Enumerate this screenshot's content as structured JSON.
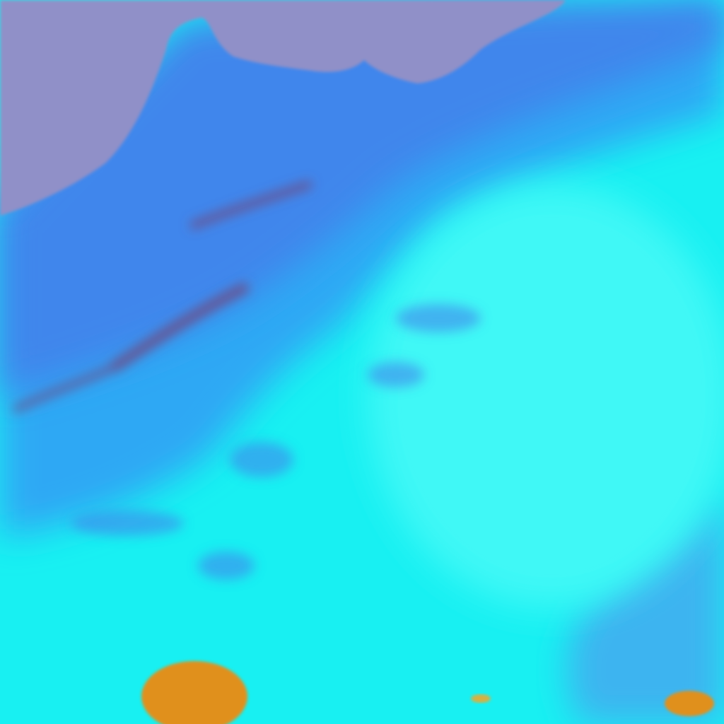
{
  "colors": {
    "sea": "#9090c8",
    "coast_land": "#3f86ec",
    "mid_land": "#2fa8f4",
    "desert": "#18f0f2",
    "bright_desert": "#3ff8f6",
    "southeast_land": "#3cb4f0",
    "ridge": "#6a4f8a",
    "orange_patch": "#e0901e",
    "yellow_patch": "#d8b040"
  }
}
